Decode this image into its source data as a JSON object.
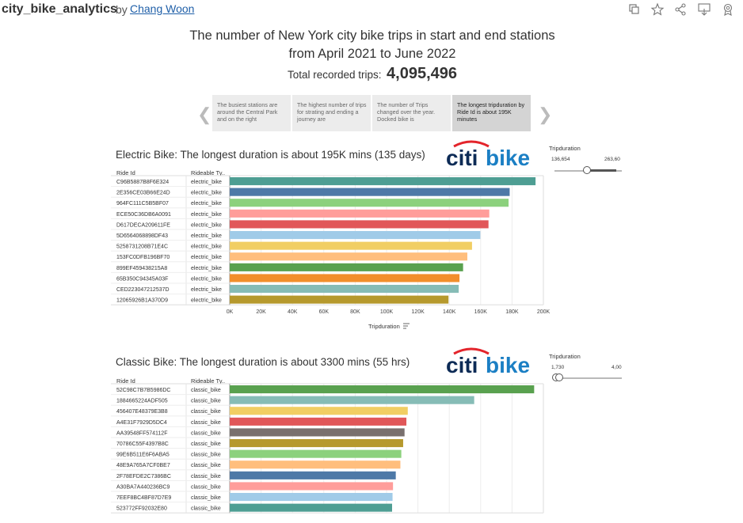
{
  "workbook": {
    "title": "city_bike_analytics",
    "by": "by",
    "author": "Chang Woon"
  },
  "toolbar": {
    "icons": [
      "copy-icon",
      "star-icon",
      "share-icon",
      "download-icon",
      "badge-icon"
    ]
  },
  "header": {
    "title_line1": "The number of New York city bike trips in start and end stations",
    "title_line2": "from April 2021 to June 2022",
    "total_label": "Total recorded trips:",
    "total_value": "4,095,496"
  },
  "story": {
    "points": [
      "The busiest stations are around the Central Park and on the right",
      "The highest number of trips for strating and ending a journey are",
      "The number of Trips changed over the year. Docked bike is",
      "The longest tripduration by Ride Id is about 195K minutes"
    ],
    "active_index": 3
  },
  "logo": {
    "citi": "citi",
    "bike": "bike"
  },
  "electric": {
    "title": "Electric Bike: The longest duration is about 195K mins (135 days)",
    "col_ride": "Ride Id",
    "col_type": "Rideable Ty..",
    "filter_title": "Tripduration",
    "filter_min": "136,654",
    "filter_max": "263,60",
    "axis_title": "Tripduration"
  },
  "classic": {
    "title": "Classic Bike: The longest duration is about 3300 mins (55 hrs)",
    "col_ride": "Ride Id",
    "col_type": "Rideable Ty..",
    "filter_title": "Tripduration",
    "filter_min": "1,730",
    "filter_max": "4,00"
  },
  "chart_data": [
    {
      "type": "bar",
      "orientation": "horizontal",
      "title": "Electric Bike: The longest duration is about 195K mins (135 days)",
      "xlabel": "Tripduration",
      "xlim": [
        0,
        200000
      ],
      "xticks": [
        "0K",
        "20K",
        "40K",
        "60K",
        "80K",
        "100K",
        "120K",
        "140K",
        "160K",
        "180K",
        "200K"
      ],
      "grid": true,
      "rows": [
        {
          "id": "C96B5887B8F6E324",
          "type": "electric_bike",
          "value": 195000,
          "color": "#4e9e93"
        },
        {
          "id": "2E356CE03B66E24D",
          "type": "electric_bike",
          "value": 178500,
          "color": "#4e79a7"
        },
        {
          "id": "964FC111C5B5BF07",
          "type": "electric_bike",
          "value": 177800,
          "color": "#8cd17d"
        },
        {
          "id": "ECE50C36DB6A0091",
          "type": "electric_bike",
          "value": 165500,
          "color": "#ff9d9a"
        },
        {
          "id": "D617DECA209611FE",
          "type": "electric_bike",
          "value": 165000,
          "color": "#e15759"
        },
        {
          "id": "5D6564068898DF43",
          "type": "electric_bike",
          "value": 159800,
          "color": "#a0cbe8"
        },
        {
          "id": "5258731208B71E4C",
          "type": "electric_bike",
          "value": 154500,
          "color": "#f1ce63"
        },
        {
          "id": "153FC0DFB196BF70",
          "type": "electric_bike",
          "value": 151500,
          "color": "#ffbe7d"
        },
        {
          "id": "899EF459438215A8",
          "type": "electric_bike",
          "value": 148800,
          "color": "#59a14f"
        },
        {
          "id": "65B350C94345A03F",
          "type": "electric_bike",
          "value": 146500,
          "color": "#f28e2b"
        },
        {
          "id": "CED223047212537D",
          "type": "electric_bike",
          "value": 146000,
          "color": "#86bcb6"
        },
        {
          "id": "12065926B1A370D9",
          "type": "electric_bike",
          "value": 139500,
          "color": "#b6992d"
        }
      ]
    },
    {
      "type": "bar",
      "orientation": "horizontal",
      "title": "Classic Bike: The longest duration is about 3300 mins (55 hrs)",
      "xlim": [
        0,
        3400
      ],
      "grid": true,
      "rows": [
        {
          "id": "52C98C7B7B5986DC",
          "type": "classic_bike",
          "value": 3300,
          "color": "#59a14f"
        },
        {
          "id": "1884665224ADF505",
          "type": "classic_bike",
          "value": 2650,
          "color": "#86bcb6"
        },
        {
          "id": "456407E48379E3B8",
          "type": "classic_bike",
          "value": 1930,
          "color": "#f1ce63"
        },
        {
          "id": "A4E31F7929D5DC4",
          "type": "classic_bike",
          "value": 1915,
          "color": "#e15759"
        },
        {
          "id": "AA39548FF574112F",
          "type": "classic_bike",
          "value": 1895,
          "color": "#79706e"
        },
        {
          "id": "70786C55F4397B8C",
          "type": "classic_bike",
          "value": 1880,
          "color": "#b6992d"
        },
        {
          "id": "99E6B511E6F6ABA5",
          "type": "classic_bike",
          "value": 1860,
          "color": "#8cd17d"
        },
        {
          "id": "48E9A765A7CF0BE7",
          "type": "classic_bike",
          "value": 1850,
          "color": "#ffbe7d"
        },
        {
          "id": "2F78EFDE2C7386BC",
          "type": "classic_bike",
          "value": 1800,
          "color": "#4e79a7"
        },
        {
          "id": "A30BA7A440236BC9",
          "type": "classic_bike",
          "value": 1770,
          "color": "#ff9d9a"
        },
        {
          "id": "7EEF8BC4BF87D7E9",
          "type": "classic_bike",
          "value": 1765,
          "color": "#a0cbe8"
        },
        {
          "id": "523772FF92032E80",
          "type": "classic_bike",
          "value": 1760,
          "color": "#4e9e93"
        }
      ]
    }
  ]
}
